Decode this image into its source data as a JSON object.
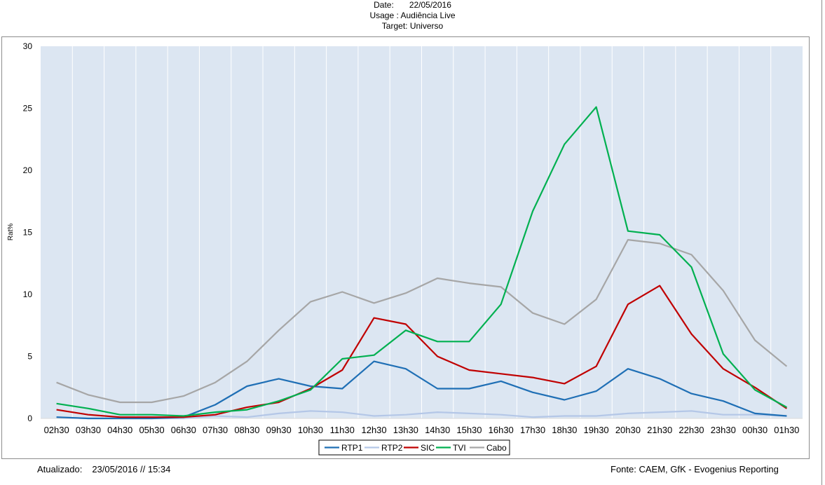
{
  "header": {
    "date_label": "Date:",
    "date_value": "22/05/2016",
    "usage_label": "Usage :",
    "usage_value": "Audiência Live",
    "target_label": "Target:",
    "target_value": "Universo"
  },
  "footer": {
    "updated_label": "Atualizado:",
    "updated_value": "23/05/2016 // 15:34",
    "source": "Fonte: CAEM, GfK - Evogenius Reporting"
  },
  "chart_data": {
    "type": "line",
    "title": "",
    "xlabel": "",
    "ylabel": "Rat%",
    "ylim": [
      0,
      30
    ],
    "yticks": [
      0,
      5,
      10,
      15,
      20,
      25,
      30
    ],
    "grid": "vertical",
    "legend_position": "bottom",
    "categories": [
      "02h30",
      "03h30",
      "04h30",
      "05h30",
      "06h30",
      "07h30",
      "08h30",
      "09h30",
      "10h30",
      "11h30",
      "12h30",
      "13h30",
      "14h30",
      "15h30",
      "16h30",
      "17h30",
      "18h30",
      "19h30",
      "20h30",
      "21h30",
      "22h30",
      "23h30",
      "00h30",
      "01h30"
    ],
    "series": [
      {
        "name": "RTP1",
        "color": "#1f6fb5",
        "values": [
          0.1,
          0.0,
          0.0,
          0.0,
          0.1,
          1.1,
          2.6,
          3.2,
          2.6,
          2.4,
          4.6,
          4.0,
          2.4,
          2.4,
          3.0,
          2.1,
          1.5,
          2.2,
          4.0,
          3.2,
          2.0,
          1.4,
          0.4,
          0.2
        ]
      },
      {
        "name": "RTP2",
        "color": "#b4c7e7",
        "values": [
          0.1,
          0.0,
          0.0,
          0.0,
          0.0,
          0.2,
          0.1,
          0.4,
          0.6,
          0.5,
          0.2,
          0.3,
          0.5,
          0.4,
          0.3,
          0.1,
          0.2,
          0.2,
          0.4,
          0.5,
          0.6,
          0.3,
          0.3,
          0.2
        ]
      },
      {
        "name": "SIC",
        "color": "#c00000",
        "values": [
          0.7,
          0.3,
          0.1,
          0.1,
          0.1,
          0.3,
          0.9,
          1.3,
          2.4,
          3.9,
          8.1,
          7.6,
          5.0,
          3.9,
          3.6,
          3.3,
          2.8,
          4.2,
          9.2,
          10.7,
          6.8,
          4.0,
          2.5,
          0.8
        ]
      },
      {
        "name": "TVI",
        "color": "#00b050",
        "values": [
          1.2,
          0.8,
          0.3,
          0.3,
          0.2,
          0.5,
          0.7,
          1.4,
          2.3,
          4.8,
          5.1,
          7.1,
          6.2,
          6.2,
          9.2,
          16.7,
          22.1,
          25.1,
          15.1,
          14.8,
          12.2,
          5.2,
          2.3,
          0.9
        ]
      },
      {
        "name": "Cabo",
        "color": "#a6a6a6",
        "values": [
          2.9,
          1.9,
          1.3,
          1.3,
          1.8,
          2.9,
          4.6,
          7.1,
          9.4,
          10.2,
          9.3,
          10.1,
          11.3,
          10.9,
          10.6,
          8.5,
          7.6,
          9.6,
          14.4,
          14.1,
          13.2,
          10.3,
          6.3,
          4.2
        ]
      }
    ]
  }
}
